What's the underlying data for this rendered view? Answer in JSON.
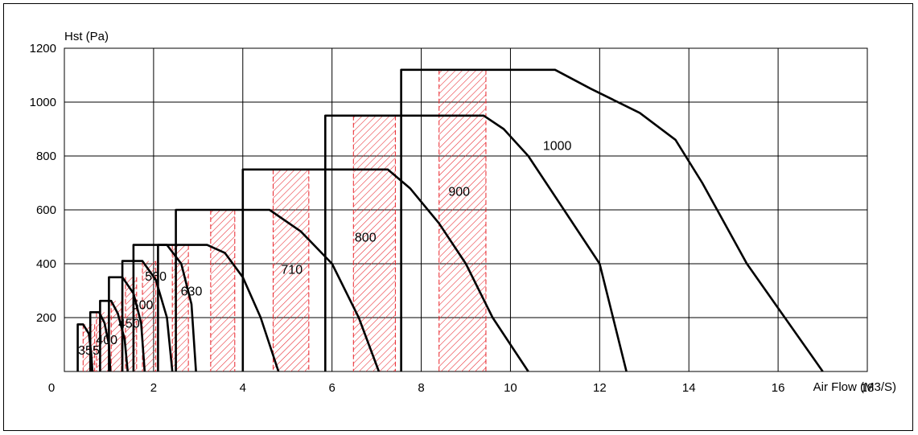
{
  "chart_data": {
    "type": "line",
    "xlabel": "Air Flow (M3/S)",
    "ylabel": "Hst (Pa)",
    "xlim": [
      0,
      18
    ],
    "ylim": [
      0,
      1200
    ],
    "x_ticks": [
      0,
      2,
      4,
      6,
      8,
      10,
      12,
      14,
      16,
      18
    ],
    "y_ticks": [
      200,
      400,
      600,
      800,
      1000,
      1200
    ],
    "grid": true,
    "colors": {
      "curve": "#000000",
      "hatch": "#e8232a",
      "grid": "#000000"
    },
    "series": [
      {
        "name": "355",
        "label_pos": [
          0.55,
          80
        ],
        "points": [
          [
            0.3,
            0
          ],
          [
            0.3,
            175
          ],
          [
            0.42,
            175
          ],
          [
            0.55,
            140
          ],
          [
            0.6,
            70
          ],
          [
            0.63,
            0
          ]
        ]
      },
      {
        "name": "400",
        "label_pos": [
          0.95,
          120
        ],
        "points": [
          [
            0.58,
            0
          ],
          [
            0.58,
            220
          ],
          [
            0.78,
            220
          ],
          [
            0.9,
            180
          ],
          [
            1.0,
            100
          ],
          [
            1.03,
            0
          ]
        ]
      },
      {
        "name": "450",
        "label_pos": [
          1.45,
          180
        ],
        "points": [
          [
            0.8,
            0
          ],
          [
            0.8,
            262
          ],
          [
            1.05,
            262
          ],
          [
            1.2,
            215
          ],
          [
            1.35,
            120
          ],
          [
            1.42,
            0
          ]
        ]
      },
      {
        "name": "500",
        "label_pos": [
          1.75,
          250
        ],
        "points": [
          [
            1.0,
            0
          ],
          [
            1.0,
            350
          ],
          [
            1.3,
            350
          ],
          [
            1.55,
            290
          ],
          [
            1.72,
            180
          ],
          [
            1.8,
            0
          ]
        ]
      },
      {
        "name": "560",
        "label_pos": [
          2.05,
          355
        ],
        "points": [
          [
            1.3,
            0
          ],
          [
            1.3,
            410
          ],
          [
            1.75,
            410
          ],
          [
            2.05,
            340
          ],
          [
            2.3,
            200
          ],
          [
            2.42,
            0
          ]
        ]
      },
      {
        "name": "630",
        "label_pos": [
          2.85,
          300
        ],
        "points": [
          [
            1.55,
            0
          ],
          [
            1.55,
            470
          ],
          [
            2.3,
            470
          ],
          [
            2.62,
            400
          ],
          [
            2.85,
            250
          ],
          [
            2.95,
            0
          ]
        ]
      },
      {
        "name": "710",
        "label_pos": [
          5.1,
          380
        ],
        "points": [
          [
            2.1,
            0
          ],
          [
            2.1,
            470
          ],
          [
            3.2,
            470
          ],
          [
            3.6,
            440
          ],
          [
            4.0,
            350
          ],
          [
            4.4,
            200
          ],
          [
            4.8,
            0
          ]
        ]
      },
      {
        "name": "800",
        "label_pos": [
          6.75,
          500
        ],
        "points": [
          [
            2.5,
            0
          ],
          [
            2.5,
            600
          ],
          [
            4.6,
            600
          ],
          [
            5.3,
            520
          ],
          [
            6.0,
            400
          ],
          [
            6.6,
            200
          ],
          [
            7.05,
            0
          ]
        ]
      },
      {
        "name": "900",
        "label_pos": [
          8.85,
          670
        ],
        "points": [
          [
            4.0,
            0
          ],
          [
            4.0,
            750
          ],
          [
            7.25,
            750
          ],
          [
            7.75,
            680
          ],
          [
            8.4,
            550
          ],
          [
            9.0,
            400
          ],
          [
            9.6,
            200
          ],
          [
            10.4,
            0
          ]
        ]
      },
      {
        "name": "1000",
        "label_pos": [
          11.05,
          840
        ],
        "points": [
          [
            5.85,
            0
          ],
          [
            5.85,
            950
          ],
          [
            9.4,
            950
          ],
          [
            9.85,
            900
          ],
          [
            10.4,
            800
          ],
          [
            11.2,
            600
          ],
          [
            12.0,
            400
          ],
          [
            12.6,
            0
          ]
        ]
      },
      {
        "name": "",
        "label_pos": null,
        "points": [
          [
            7.55,
            0
          ],
          [
            7.55,
            1120
          ],
          [
            11.0,
            1120
          ],
          [
            11.8,
            1050
          ],
          [
            12.9,
            960
          ],
          [
            13.7,
            860
          ],
          [
            14.3,
            700
          ],
          [
            15.3,
            400
          ],
          [
            17.0,
            0
          ]
        ]
      }
    ],
    "hatched_regions": [
      {
        "x": [
          0.42,
          0.68
        ],
        "top": 175
      },
      {
        "x": [
          0.72,
          0.99
        ],
        "top": 220
      },
      {
        "x": [
          1.05,
          1.28
        ],
        "top": 262
      },
      {
        "x": [
          1.37,
          1.62
        ],
        "top": 350
      },
      {
        "x": [
          1.75,
          2.05
        ],
        "top": 410
      },
      {
        "x": [
          2.42,
          2.78
        ],
        "top": 470
      },
      {
        "x": [
          3.28,
          3.82
        ],
        "top": 600
      },
      {
        "x": [
          4.68,
          5.48
        ],
        "top": 750
      },
      {
        "x": [
          6.48,
          7.42
        ],
        "top": 950
      },
      {
        "x": [
          8.4,
          9.45
        ],
        "top": 1120
      }
    ]
  }
}
